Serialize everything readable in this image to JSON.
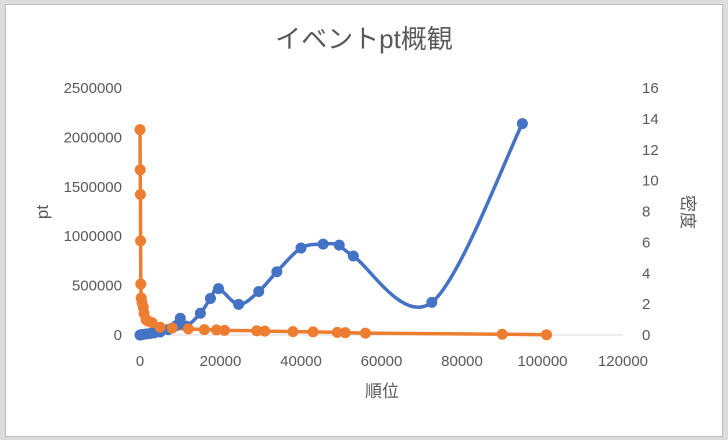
{
  "chart_data": {
    "type": "scatter",
    "title": "イベントpt概観",
    "xlabel": "順位",
    "ylabel": "pt",
    "y2label": "密度",
    "xlim": [
      0,
      120000
    ],
    "ylim": [
      0,
      2500000
    ],
    "y2lim": [
      0,
      16
    ],
    "x_ticks": [
      "0",
      "20000",
      "40000",
      "60000",
      "80000",
      "100000",
      "120000"
    ],
    "y_ticks": [
      "0",
      "500000",
      "1000000",
      "1500000",
      "2000000",
      "2500000"
    ],
    "y2_ticks": [
      "0",
      "2",
      "4",
      "6",
      "8",
      "10",
      "12",
      "14",
      "16"
    ],
    "grid": false,
    "legend": "none",
    "series": [
      {
        "axis": "left",
        "color": "#4472c4",
        "smooth": true,
        "x": [
          0,
          300,
          800,
          1500,
          2500,
          3500,
          5000,
          7000,
          9000,
          10000,
          11500,
          15000,
          17500,
          19500,
          24500,
          29500,
          34000,
          40000,
          45500,
          49500,
          53000,
          72500,
          95000
        ],
        "y": [
          0,
          3000,
          6000,
          10000,
          15000,
          22000,
          30000,
          55000,
          95000,
          170000,
          90000,
          220000,
          370000,
          470000,
          310000,
          440000,
          640000,
          880000,
          920000,
          910000,
          800000,
          330000,
          2140000
        ]
      },
      {
        "axis": "right",
        "color": "#ed7d31",
        "smooth": false,
        "x": [
          0,
          50,
          100,
          150,
          200,
          300,
          500,
          800,
          1000,
          1500,
          2000,
          3000,
          5000,
          8000,
          12000,
          16000,
          19000,
          21000,
          29000,
          31000,
          38000,
          43000,
          49000,
          51000,
          56000,
          90000,
          101000
        ],
        "y": [
          13.3,
          10.7,
          9.1,
          6.1,
          3.3,
          2.4,
          2.1,
          1.8,
          1.4,
          1.0,
          0.9,
          0.8,
          0.5,
          0.45,
          0.4,
          0.35,
          0.33,
          0.3,
          0.27,
          0.25,
          0.22,
          0.2,
          0.17,
          0.15,
          0.12,
          0.05,
          0.02
        ]
      }
    ]
  }
}
